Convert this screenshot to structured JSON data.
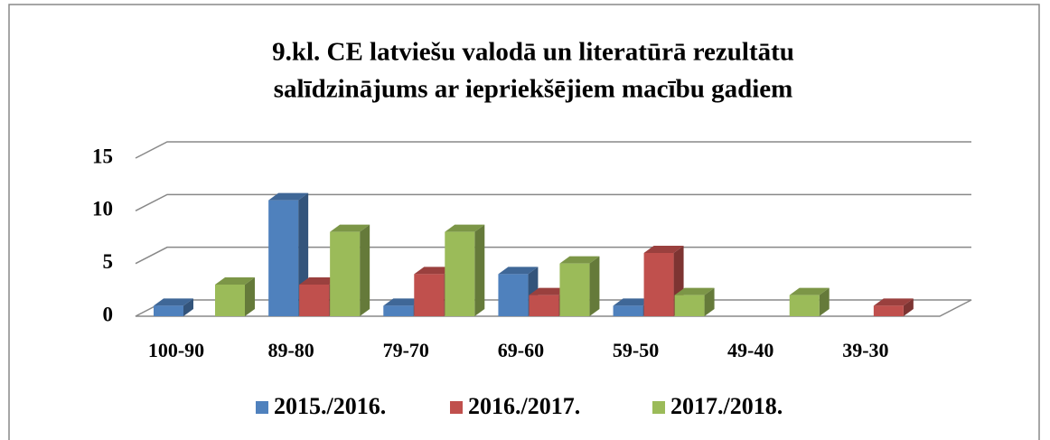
{
  "chart_data": {
    "type": "bar3d",
    "title": [
      "9.kl. CE latviešu valodā un literatūrā rezultātu",
      "salīdzinājums ar iepriekšējiem macību gadiem"
    ],
    "categories": [
      "100-90",
      "89-80",
      "79-70",
      "69-60",
      "59-50",
      "49-40",
      "39-30"
    ],
    "series": [
      {
        "name": "2015./2016.",
        "color": "#4f81bd",
        "values": [
          1,
          11,
          1,
          4,
          1,
          0,
          0
        ]
      },
      {
        "name": "2016./2017.",
        "color": "#c0504d",
        "values": [
          0,
          3,
          4,
          2,
          6,
          0,
          1
        ]
      },
      {
        "name": "2017./2018.",
        "color": "#9bbb59",
        "values": [
          3,
          8,
          8,
          5,
          2,
          2,
          0
        ]
      }
    ],
    "ylim": [
      0,
      15
    ],
    "yticks": [
      0,
      5,
      10,
      15
    ],
    "grid": true,
    "legend": "bottom"
  }
}
